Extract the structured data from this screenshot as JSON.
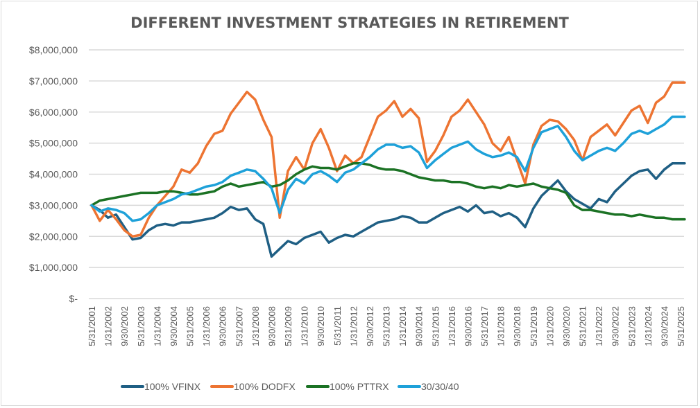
{
  "chart_data": {
    "type": "line",
    "title": "DIFFERENT INVESTMENT STRATEGIES IN RETIREMENT",
    "xlabel": "",
    "ylabel": "",
    "ylim": [
      0,
      8000000
    ],
    "yticks": [
      0,
      1000000,
      2000000,
      3000000,
      4000000,
      5000000,
      6000000,
      7000000,
      8000000
    ],
    "ytick_labels": [
      "$-",
      "$1,000,000",
      "$2,000,000",
      "$3,000,000",
      "$4,000,000",
      "$5,000,000",
      "$6,000,000",
      "$7,000,000",
      "$8,000,000"
    ],
    "xtick_labels": [
      "5/31/2001",
      "1/31/2002",
      "9/30/2002",
      "5/31/2003",
      "1/31/2004",
      "9/30/2004",
      "5/31/2005",
      "1/31/2006",
      "9/30/2006",
      "5/31/2007",
      "1/31/2008",
      "9/30/2008",
      "5/31/2009",
      "1/31/2010",
      "9/30/2010",
      "5/31/2011",
      "1/31/2012",
      "9/30/2012",
      "5/31/2013",
      "1/31/2014",
      "9/30/2014",
      "5/31/2015",
      "1/31/2016",
      "9/30/2016",
      "5/31/2017",
      "1/31/2018",
      "9/30/2018",
      "5/31/2019",
      "1/31/2020",
      "9/30/2020",
      "5/31/2021",
      "1/31/2022",
      "9/30/2022",
      "5/31/2023",
      "1/31/2024",
      "9/30/2024",
      "5/31/2025"
    ],
    "grid": true,
    "legend_position": "bottom",
    "x_months_from_start": [
      0,
      4,
      8,
      12,
      16,
      20,
      24,
      28,
      32,
      36,
      40,
      44,
      48,
      52,
      56,
      60,
      64,
      68,
      72,
      76,
      80,
      84,
      88,
      92,
      96,
      100,
      104,
      108,
      112,
      116,
      120,
      124,
      128,
      132,
      136,
      140,
      144,
      148,
      152,
      156,
      160,
      164,
      168,
      172,
      176,
      180,
      184,
      188,
      192,
      196,
      200,
      204,
      208,
      212,
      216,
      220,
      224,
      228,
      232,
      236,
      240,
      244,
      248,
      252,
      256,
      260,
      264,
      268,
      272,
      276,
      280,
      284,
      288,
      292
    ],
    "series": [
      {
        "name": "100% VFINX",
        "color": "#1f5f84",
        "values": [
          3.0,
          2.85,
          2.6,
          2.7,
          2.3,
          1.9,
          1.95,
          2.2,
          2.35,
          2.4,
          2.35,
          2.45,
          2.45,
          2.5,
          2.55,
          2.6,
          2.75,
          2.95,
          2.85,
          2.9,
          2.55,
          2.4,
          1.35,
          1.6,
          1.85,
          1.75,
          1.95,
          2.05,
          2.15,
          1.8,
          1.95,
          2.05,
          2.0,
          2.15,
          2.3,
          2.45,
          2.5,
          2.55,
          2.65,
          2.6,
          2.45,
          2.45,
          2.6,
          2.75,
          2.85,
          2.95,
          2.8,
          3.0,
          2.75,
          2.8,
          2.65,
          2.75,
          2.6,
          2.3,
          2.9,
          3.3,
          3.55,
          3.8,
          3.45,
          3.2,
          3.05,
          2.9,
          3.2,
          3.1,
          3.45,
          3.7,
          3.95,
          4.1,
          4.15,
          3.85,
          4.15,
          4.35,
          4.35,
          4.35
        ]
      },
      {
        "name": "100% DODFX",
        "color": "#ed7432",
        "values": [
          3.0,
          2.5,
          2.85,
          2.55,
          2.2,
          2.0,
          2.05,
          2.6,
          3.0,
          3.3,
          3.6,
          4.15,
          4.05,
          4.35,
          4.9,
          5.3,
          5.4,
          5.95,
          6.3,
          6.65,
          6.4,
          5.75,
          5.2,
          2.6,
          4.1,
          4.55,
          4.15,
          5.0,
          5.45,
          4.85,
          4.1,
          4.6,
          4.35,
          4.55,
          5.2,
          5.85,
          6.05,
          6.35,
          5.85,
          6.1,
          5.8,
          4.4,
          4.75,
          5.25,
          5.85,
          6.05,
          6.4,
          6.0,
          5.6,
          5.0,
          4.75,
          5.2,
          4.45,
          3.7,
          4.95,
          5.55,
          5.75,
          5.7,
          5.45,
          5.1,
          4.45,
          5.2,
          5.4,
          5.6,
          5.25,
          5.65,
          6.05,
          6.2,
          5.65,
          6.3,
          6.5,
          6.95,
          6.95,
          6.95
        ]
      },
      {
        "name": "100% PTTRX",
        "color": "#1b7224",
        "values": [
          3.0,
          3.15,
          3.2,
          3.25,
          3.3,
          3.35,
          3.4,
          3.4,
          3.4,
          3.45,
          3.45,
          3.4,
          3.35,
          3.35,
          3.4,
          3.45,
          3.6,
          3.7,
          3.6,
          3.65,
          3.7,
          3.75,
          3.6,
          3.65,
          3.8,
          4.0,
          4.15,
          4.25,
          4.2,
          4.2,
          4.15,
          4.25,
          4.35,
          4.35,
          4.3,
          4.2,
          4.15,
          4.15,
          4.1,
          4.0,
          3.9,
          3.85,
          3.8,
          3.8,
          3.75,
          3.75,
          3.7,
          3.6,
          3.55,
          3.6,
          3.55,
          3.65,
          3.6,
          3.65,
          3.7,
          3.6,
          3.55,
          3.5,
          3.4,
          3.0,
          2.85,
          2.85,
          2.8,
          2.75,
          2.7,
          2.7,
          2.65,
          2.7,
          2.65,
          2.6,
          2.6,
          2.55,
          2.55,
          2.55
        ]
      },
      {
        "name": "30/30/40",
        "color": "#1ea1d9",
        "values": [
          3.0,
          2.8,
          2.9,
          2.85,
          2.75,
          2.5,
          2.55,
          2.75,
          3.0,
          3.1,
          3.2,
          3.35,
          3.4,
          3.5,
          3.6,
          3.65,
          3.75,
          3.95,
          4.05,
          4.15,
          4.1,
          3.85,
          3.55,
          2.75,
          3.5,
          3.85,
          3.7,
          4.0,
          4.1,
          3.95,
          3.75,
          4.05,
          4.15,
          4.35,
          4.55,
          4.8,
          4.95,
          4.95,
          4.85,
          4.9,
          4.7,
          4.2,
          4.45,
          4.65,
          4.85,
          4.95,
          5.05,
          4.8,
          4.65,
          4.55,
          4.6,
          4.7,
          4.55,
          4.1,
          4.85,
          5.35,
          5.45,
          5.55,
          5.2,
          4.75,
          4.45,
          4.6,
          4.75,
          4.85,
          4.75,
          5.0,
          5.3,
          5.4,
          5.3,
          5.45,
          5.6,
          5.85,
          5.85,
          5.85
        ]
      }
    ]
  }
}
